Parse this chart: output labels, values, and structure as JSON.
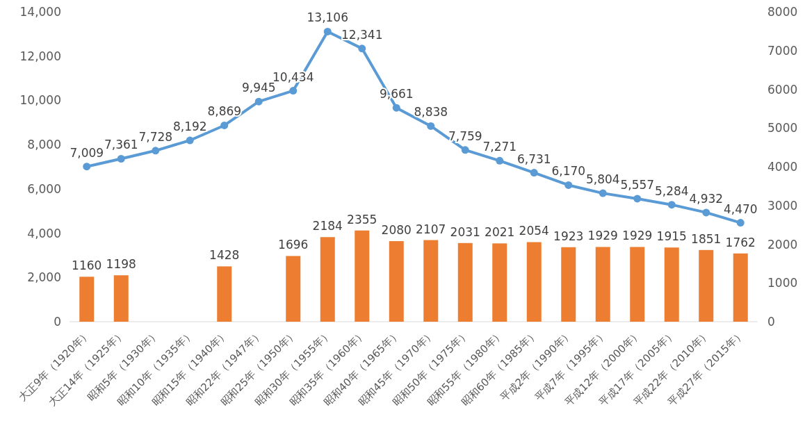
{
  "chart_data": {
    "type": "bar",
    "categories": [
      "大正9年（1920年）",
      "大正14年（1925年）",
      "昭和5年（1930年）",
      "昭和10年（1935年）",
      "昭和15年（1940年）",
      "昭和22年（1947年）",
      "昭和25年（1950年）",
      "昭和30年（1955年）",
      "昭和35年（1960年）",
      "昭和40年（1965年）",
      "昭和45年（1970年）",
      "昭和50年（1975年）",
      "昭和55年（1980年）",
      "昭和60年（1985年）",
      "平成2年（1990年）",
      "平成7年（1995年）",
      "平成12年（2000年）",
      "平成17年（2005年）",
      "平成22年（2010年）",
      "平成27年（2015年）"
    ],
    "series": [
      {
        "axis": "y2",
        "color": "#ed7d31",
        "values": [
          1160,
          1198,
          null,
          null,
          1428,
          null,
          1696,
          2184,
          2355,
          2080,
          2107,
          2031,
          2021,
          2054,
          1923,
          1929,
          1929,
          1915,
          1851,
          1762
        ],
        "value_labels": [
          "1160",
          "1198",
          null,
          null,
          "1428",
          null,
          "1696",
          "2184",
          "2355",
          "2080",
          "2107",
          "2031",
          "2021",
          "2054",
          "1923",
          "1929",
          "1929",
          "1915",
          "1851",
          "1762"
        ]
      },
      {
        "type": "line",
        "color": "#5b9bd5",
        "values": [
          7009,
          7361,
          7728,
          8192,
          8869,
          9945,
          10434,
          13106,
          12341,
          9661,
          8838,
          7759,
          7271,
          6731,
          6170,
          5804,
          5557,
          5284,
          4932,
          4470
        ],
        "value_labels": [
          "7,009",
          "7,361",
          "7,728",
          "8,192",
          "8,869",
          "9,945",
          "10,434",
          "13,106",
          "12,341",
          "9,661",
          "8,838",
          "7,759",
          "7,271",
          "6,731",
          "6,170",
          "5,804",
          "5,557",
          "5,284",
          "4,932",
          "4,470"
        ]
      }
    ],
    "marker": "circle",
    "ylim": [
      0,
      14000
    ],
    "yticks": [
      0,
      {
        "value": 2000,
        "label": "2,000"
      },
      {
        "value": 4000,
        "label": "4,000"
      },
      {
        "value": 6000,
        "label": "6,000"
      },
      {
        "value": 8000,
        "label": "8,000"
      },
      {
        "value": 10000,
        "label": "10,000"
      },
      {
        "value": 12000,
        "label": "12,000"
      },
      {
        "value": 14000,
        "label": "14,000"
      }
    ],
    "y2lim": [
      0,
      8000
    ],
    "y2ticks": [
      0,
      1000,
      2000,
      3000,
      4000,
      5000,
      6000,
      7000,
      8000
    ]
  }
}
